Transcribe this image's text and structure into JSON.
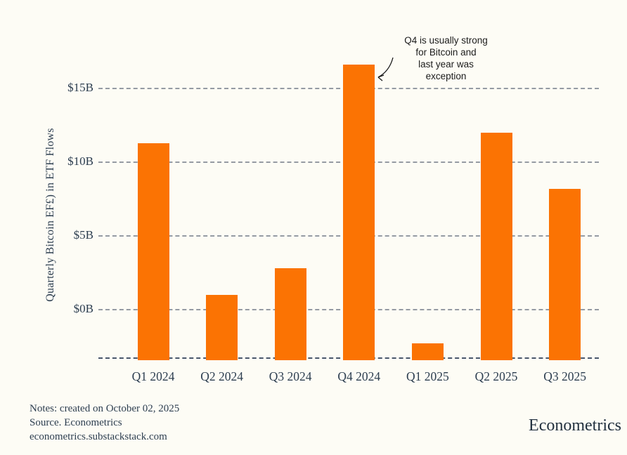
{
  "chart_data": {
    "type": "bar",
    "title": "",
    "ylabel": "Quarterly Bitcoin EF£) in ETF Flows",
    "xlabel": "",
    "unit": "billions of USD",
    "categories": [
      "Q1 2024",
      "Q2 2024",
      "Q3 2024",
      "Q4 2024",
      "Q1 2025",
      "Q2 2025",
      "Q3 2025"
    ],
    "values": [
      11.3,
      1.0,
      2.8,
      16.6,
      -2.3,
      12.0,
      8.2
    ],
    "yticks": [
      {
        "label": "$15B",
        "value": 15
      },
      {
        "label": "$10B",
        "value": 10
      },
      {
        "label": "$5B",
        "value": 5
      },
      {
        "label": "$0B",
        "value": 0
      }
    ],
    "ylim": [
      -3.3,
      17.6
    ],
    "baseline_value": -3.3,
    "grid": "horizontal-dashed",
    "legend": "none",
    "bar_color": "#fb7303",
    "annotation": {
      "text": "Q4 is usually strong\nfor Bitcoin and\nlast year was\nexception",
      "target_category": "Q4 2024"
    }
  },
  "footer": {
    "notes": [
      "Notes: created on October 02, 2025",
      "Source. Econometrics",
      "econometrics.substackstack.com"
    ],
    "brand": "Econometrics"
  },
  "colors": {
    "background": "#fdfcf5",
    "bar": "#fb7303",
    "text": "#2d3e50",
    "grid": "#959ba3",
    "baseline": "#49566a",
    "annotation_text": "#1c1c1c"
  }
}
